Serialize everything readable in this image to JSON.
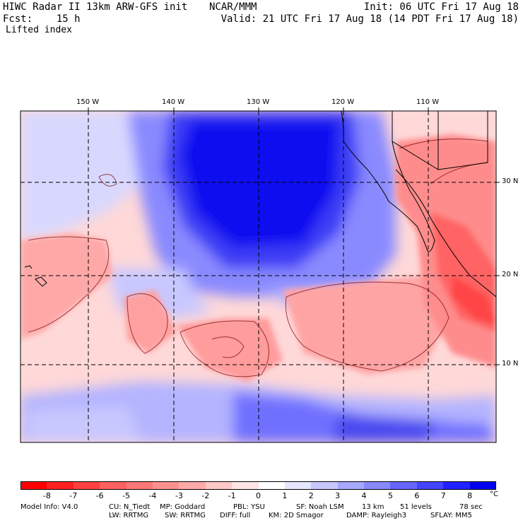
{
  "header": {
    "model_line": "HIWC Radar II 13km ARW-GFS init",
    "org": "NCAR/MMM",
    "init": "Init: 06 UTC Fri 17 Aug 18",
    "fcst": "Fcst:    15 h",
    "valid": "Valid: 21 UTC Fri 17 Aug 18 (14 PDT Fri 17 Aug 18)",
    "field": "Lifted index"
  },
  "map": {
    "lon_labels": [
      "150 W",
      "140 W",
      "130 W",
      "120 W",
      "110 W"
    ],
    "lat_labels": [
      "30 N",
      "20 N",
      "10 N"
    ]
  },
  "colorbar": {
    "unit": "°C",
    "labels": [
      "-8",
      "-7",
      "-6",
      "-5",
      "-4",
      "-3",
      "-2",
      "-1",
      "0",
      "1",
      "2",
      "3",
      "4",
      "5",
      "6",
      "7",
      "8"
    ],
    "colors": [
      "#ff0000",
      "#ff2020",
      "#ff4040",
      "#ff6060",
      "#ff7878",
      "#ff9090",
      "#ffaaaa",
      "#ffc8c8",
      "#ffe4e4",
      "#ffffff",
      "#e6e6ff",
      "#c8c8ff",
      "#a8a8ff",
      "#8888ff",
      "#6666ff",
      "#4444ff",
      "#2222ff",
      "#0000ee"
    ]
  },
  "footer": {
    "line1": [
      "Model Info: V4.0",
      "CU: N_Tiedt",
      "MP: Goddard",
      "PBL: YSU",
      "SF: Noah LSM",
      "13 km",
      "51 levels",
      "78 sec"
    ],
    "line2": [
      "LW: RRTMG",
      "SW: RRTMG",
      "DIFF: full",
      "KM: 2D Smagor",
      "DAMP: Rayleigh3",
      "SFLAY: MM5"
    ]
  }
}
